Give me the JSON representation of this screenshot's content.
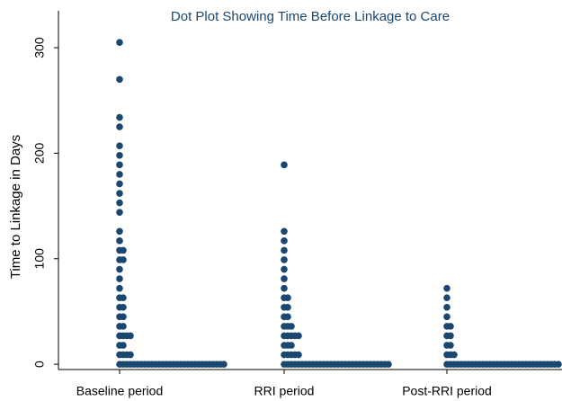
{
  "chart_data": {
    "type": "dot",
    "title": "Dot Plot Showing Time Before Linkage to Care",
    "y_label": "Time to Linkage in Days",
    "categories": [
      "Baseline period",
      "RRI period",
      "Post-RRI period"
    ],
    "color": "#1a476f",
    "groups": [
      {
        "values": [
          305,
          270,
          234,
          225,
          207,
          198,
          189,
          180,
          171,
          162,
          153,
          144,
          126,
          117,
          108,
          99,
          90,
          81,
          72,
          63,
          54,
          45,
          36,
          27,
          18,
          9,
          0
        ],
        "counts": [
          1,
          1,
          1,
          1,
          1,
          1,
          1,
          1,
          1,
          1,
          1,
          1,
          1,
          1,
          2,
          2,
          1,
          1,
          1,
          2,
          2,
          2,
          2,
          4,
          2,
          4,
          30
        ]
      },
      {
        "values": [
          189,
          126,
          117,
          108,
          99,
          90,
          81,
          72,
          63,
          54,
          45,
          36,
          27,
          18,
          9,
          0
        ],
        "counts": [
          1,
          1,
          1,
          1,
          1,
          1,
          1,
          1,
          2,
          2,
          2,
          3,
          5,
          3,
          5,
          30
        ]
      },
      {
        "values": [
          72,
          63,
          54,
          45,
          36,
          27,
          18,
          9,
          0
        ],
        "counts": [
          1,
          1,
          1,
          1,
          2,
          2,
          2,
          3,
          32
        ]
      }
    ],
    "ylim": [
      -5,
      335
    ],
    "yticks": [
      0,
      100,
      200,
      300
    ]
  }
}
